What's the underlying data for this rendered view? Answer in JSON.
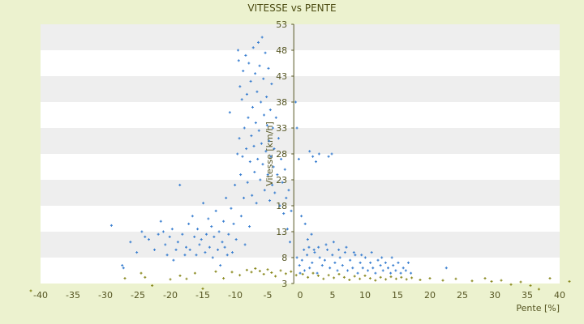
{
  "chart_data": {
    "type": "scatter",
    "title": "VITESSE vs PENTE",
    "xlabel": "Pente [%]",
    "ylabel": "Vitesse [km/h]",
    "xlim": [
      -40,
      42
    ],
    "ylim": [
      3,
      53
    ],
    "x_ticks": [
      "-40",
      "-35",
      "-30",
      "-25",
      "-20",
      "-15",
      "-10",
      "-5",
      "0",
      "5",
      "10",
      "15",
      "20",
      "25",
      "30",
      "35",
      "40"
    ],
    "y_ticks": [
      "3",
      "8",
      "13",
      "18",
      "23",
      "28",
      "33",
      "38",
      "43",
      "48",
      "53"
    ],
    "grid": "horizontal bands",
    "colors": {
      "series_blue": "#3a7fd0",
      "series_olive": "#8a8a20",
      "background": "#ecf2cf",
      "plot_band": "#eeeeee",
      "axis": "#555522"
    },
    "series": [
      {
        "color": "#3a7fd0",
        "points": [
          [
            -28.8,
            14.2
          ],
          [
            -27.1,
            6.5
          ],
          [
            -26.9,
            6.0
          ],
          [
            -25.8,
            11.0
          ],
          [
            -24.8,
            9.0
          ],
          [
            -24.0,
            13.0
          ],
          [
            -23.5,
            12.0
          ],
          [
            -22.9,
            11.5
          ],
          [
            -22.0,
            9.5
          ],
          [
            -21.4,
            12.5
          ],
          [
            -21.0,
            15.0
          ],
          [
            -20.6,
            13.0
          ],
          [
            -20.3,
            10.5
          ],
          [
            -20.0,
            8.5
          ],
          [
            -19.6,
            12.0
          ],
          [
            -19.2,
            13.5
          ],
          [
            -19.0,
            7.5
          ],
          [
            -18.6,
            9.5
          ],
          [
            -18.3,
            11.0
          ],
          [
            -18.0,
            22.0
          ],
          [
            -17.6,
            12.5
          ],
          [
            -17.2,
            8.5
          ],
          [
            -17.0,
            10.0
          ],
          [
            -16.6,
            14.5
          ],
          [
            -16.4,
            9.5
          ],
          [
            -16.0,
            16.0
          ],
          [
            -15.7,
            12.0
          ],
          [
            -15.4,
            8.5
          ],
          [
            -15.2,
            13.5
          ],
          [
            -14.9,
            10.5
          ],
          [
            -14.6,
            11.5
          ],
          [
            -14.3,
            18.5
          ],
          [
            -14.0,
            9.0
          ],
          [
            -13.8,
            12.5
          ],
          [
            -13.5,
            15.5
          ],
          [
            -13.3,
            10.0
          ],
          [
            -13.0,
            14.0
          ],
          [
            -12.8,
            8.0
          ],
          [
            -12.6,
            12.0
          ],
          [
            -12.3,
            17.0
          ],
          [
            -12.0,
            9.5
          ],
          [
            -11.8,
            13.0
          ],
          [
            -11.6,
            6.5
          ],
          [
            -11.3,
            11.0
          ],
          [
            -11.1,
            15.0
          ],
          [
            -10.9,
            10.0
          ],
          [
            -10.7,
            19.5
          ],
          [
            -10.5,
            8.5
          ],
          [
            -10.3,
            12.5
          ],
          [
            -10.1,
            36.0
          ],
          [
            -9.9,
            17.5
          ],
          [
            -9.7,
            9.0
          ],
          [
            -9.5,
            14.5
          ],
          [
            -9.3,
            22.0
          ],
          [
            -9.1,
            11.5
          ],
          [
            -8.9,
            28.0
          ],
          [
            -8.8,
            48.0
          ],
          [
            -8.7,
            46.0
          ],
          [
            -8.6,
            31.0
          ],
          [
            -8.5,
            41.0
          ],
          [
            -8.4,
            24.0
          ],
          [
            -8.3,
            16.0
          ],
          [
            -8.2,
            38.5
          ],
          [
            -8.1,
            27.5
          ],
          [
            -8.0,
            44.0
          ],
          [
            -7.9,
            19.5
          ],
          [
            -7.8,
            33.0
          ],
          [
            -7.7,
            10.5
          ],
          [
            -7.6,
            47.0
          ],
          [
            -7.5,
            29.0
          ],
          [
            -7.4,
            39.5
          ],
          [
            -7.3,
            22.5
          ],
          [
            -7.2,
            35.0
          ],
          [
            -7.1,
            45.5
          ],
          [
            -7.0,
            14.0
          ],
          [
            -6.9,
            26.5
          ],
          [
            -6.8,
            42.0
          ],
          [
            -6.7,
            31.5
          ],
          [
            -6.6,
            20.0
          ],
          [
            -6.5,
            37.0
          ],
          [
            -6.4,
            48.5
          ],
          [
            -6.3,
            29.5
          ],
          [
            -6.2,
            24.5
          ],
          [
            -6.1,
            43.5
          ],
          [
            -6.0,
            34.0
          ],
          [
            -5.9,
            18.5
          ],
          [
            -5.8,
            40.0
          ],
          [
            -5.7,
            27.0
          ],
          [
            -5.6,
            49.5
          ],
          [
            -5.5,
            32.5
          ],
          [
            -5.4,
            45.0
          ],
          [
            -5.3,
            23.0
          ],
          [
            -5.2,
            38.0
          ],
          [
            -5.1,
            30.0
          ],
          [
            -5.0,
            50.5
          ],
          [
            -4.9,
            26.0
          ],
          [
            -4.8,
            42.5
          ],
          [
            -4.7,
            35.5
          ],
          [
            -4.6,
            21.0
          ],
          [
            -4.5,
            47.5
          ],
          [
            -4.4,
            28.5
          ],
          [
            -4.3,
            39.0
          ],
          [
            -4.2,
            33.5
          ],
          [
            -4.1,
            24.0
          ],
          [
            -4.0,
            44.5
          ],
          [
            -3.9,
            30.5
          ],
          [
            -3.8,
            19.0
          ],
          [
            -3.7,
            36.5
          ],
          [
            -3.6,
            27.5
          ],
          [
            -3.5,
            41.5
          ],
          [
            -3.4,
            22.0
          ],
          [
            -3.3,
            33.0
          ],
          [
            -3.2,
            25.5
          ],
          [
            -3.1,
            29.0
          ],
          [
            -3.0,
            20.5
          ],
          [
            -2.8,
            35.0
          ],
          [
            -2.6,
            24.0
          ],
          [
            -2.4,
            31.0
          ],
          [
            -2.2,
            18.0
          ],
          [
            -2.0,
            27.0
          ],
          [
            -1.8,
            22.5
          ],
          [
            -1.6,
            16.5
          ],
          [
            -1.4,
            25.0
          ],
          [
            -1.2,
            19.5
          ],
          [
            -1.0,
            13.5
          ],
          [
            -0.8,
            21.0
          ],
          [
            -0.6,
            11.0
          ],
          [
            -0.4,
            17.0
          ],
          [
            0.3,
            38.0
          ],
          [
            0.5,
            33.0
          ],
          [
            0.8,
            27.0
          ],
          [
            1.2,
            16.0
          ],
          [
            1.8,
            14.5
          ],
          [
            2.5,
            28.5
          ],
          [
            3.0,
            27.5
          ],
          [
            3.5,
            26.5
          ],
          [
            4.0,
            28.0
          ],
          [
            5.5,
            27.5
          ],
          [
            6.0,
            28.0
          ],
          [
            2.2,
            11.5
          ],
          [
            3.2,
            9.5
          ],
          [
            2.8,
            12.5
          ],
          [
            0.5,
            8.0
          ],
          [
            0.9,
            6.5
          ],
          [
            1.3,
            7.5
          ],
          [
            1.7,
            5.5
          ],
          [
            2.1,
            8.5
          ],
          [
            2.5,
            6.0
          ],
          [
            2.9,
            7.0
          ],
          [
            3.3,
            9.0
          ],
          [
            3.7,
            5.0
          ],
          [
            4.1,
            8.0
          ],
          [
            4.5,
            6.5
          ],
          [
            4.9,
            7.5
          ],
          [
            5.3,
            9.5
          ],
          [
            5.7,
            6.0
          ],
          [
            6.1,
            8.5
          ],
          [
            6.5,
            7.0
          ],
          [
            6.9,
            5.5
          ],
          [
            7.3,
            8.0
          ],
          [
            7.7,
            6.5
          ],
          [
            8.1,
            9.0
          ],
          [
            8.5,
            5.5
          ],
          [
            8.9,
            7.5
          ],
          [
            9.3,
            6.0
          ],
          [
            9.7,
            8.5
          ],
          [
            10.1,
            5.0
          ],
          [
            10.5,
            7.0
          ],
          [
            10.9,
            6.0
          ],
          [
            11.3,
            8.0
          ],
          [
            11.7,
            5.5
          ],
          [
            12.1,
            7.0
          ],
          [
            12.5,
            6.0
          ],
          [
            12.9,
            5.0
          ],
          [
            13.3,
            7.5
          ],
          [
            13.7,
            6.5
          ],
          [
            14.1,
            5.5
          ],
          [
            14.5,
            7.0
          ],
          [
            14.9,
            6.0
          ],
          [
            15.3,
            5.0
          ],
          [
            15.7,
            6.5
          ],
          [
            16.1,
            5.5
          ],
          [
            16.5,
            7.0
          ],
          [
            16.9,
            5.0
          ],
          [
            17.3,
            6.0
          ],
          [
            17.7,
            5.5
          ],
          [
            18.1,
            7.0
          ],
          [
            18.5,
            5.0
          ],
          [
            24.1,
            6.0
          ],
          [
            3.9,
            10.0
          ],
          [
            5.1,
            10.5
          ],
          [
            6.3,
            11.0
          ],
          [
            7.1,
            9.5
          ],
          [
            8.3,
            10.0
          ],
          [
            9.5,
            9.0
          ],
          [
            1.0,
            5.0
          ],
          [
            1.6,
            9.5
          ],
          [
            2.4,
            10.0
          ],
          [
            10.7,
            8.5
          ],
          [
            12.3,
            9.0
          ],
          [
            13.9,
            8.0
          ],
          [
            15.5,
            8.0
          ]
        ]
      },
      {
        "color": "#8a8a20",
        "points": [
          [
            -41.5,
            1.6
          ],
          [
            -27.0,
            4.0
          ],
          [
            -24.5,
            5.0
          ],
          [
            -23.9,
            4.2
          ],
          [
            -22.8,
            2.6
          ],
          [
            -20.0,
            3.8
          ],
          [
            -18.5,
            4.5
          ],
          [
            -17.5,
            3.9
          ],
          [
            -16.2,
            5.0
          ],
          [
            -15.0,
            2.0
          ],
          [
            -13.0,
            5.3
          ],
          [
            -11.8,
            4.0
          ],
          [
            -10.5,
            5.2
          ],
          [
            -9.3,
            4.6
          ],
          [
            -8.2,
            5.6
          ],
          [
            -7.5,
            5.2
          ],
          [
            -6.9,
            5.9
          ],
          [
            -6.2,
            5.4
          ],
          [
            -5.6,
            4.8
          ],
          [
            -5.0,
            5.7
          ],
          [
            -4.4,
            5.1
          ],
          [
            -3.8,
            4.4
          ],
          [
            -3.0,
            5.5
          ],
          [
            -2.2,
            4.9
          ],
          [
            -1.4,
            5.3
          ],
          [
            -0.6,
            4.6
          ],
          [
            0.4,
            4.8
          ],
          [
            1.2,
            4.2
          ],
          [
            2.0,
            5.0
          ],
          [
            2.8,
            4.5
          ],
          [
            3.6,
            3.9
          ],
          [
            4.4,
            4.6
          ],
          [
            5.2,
            4.1
          ],
          [
            6.0,
            4.8
          ],
          [
            6.8,
            4.2
          ],
          [
            7.6,
            3.7
          ],
          [
            8.4,
            4.4
          ],
          [
            9.2,
            3.9
          ],
          [
            10.0,
            4.5
          ],
          [
            10.8,
            4.0
          ],
          [
            11.6,
            3.6
          ],
          [
            12.4,
            4.2
          ],
          [
            13.2,
            3.8
          ],
          [
            14.0,
            4.3
          ],
          [
            14.8,
            3.9
          ],
          [
            15.6,
            4.2
          ],
          [
            16.4,
            3.8
          ],
          [
            17.2,
            4.1
          ],
          [
            18.5,
            3.7
          ],
          [
            20.0,
            4.0
          ],
          [
            22.0,
            3.6
          ],
          [
            24.0,
            3.9
          ],
          [
            26.5,
            3.5
          ],
          [
            28.5,
            4.0
          ],
          [
            29.5,
            3.4
          ],
          [
            31.0,
            3.6
          ],
          [
            32.5,
            2.8
          ],
          [
            34.0,
            3.3
          ],
          [
            35.5,
            2.6
          ],
          [
            36.8,
            1.9
          ],
          [
            38.5,
            4.0
          ],
          [
            41.5,
            3.4
          ]
        ]
      }
    ]
  }
}
